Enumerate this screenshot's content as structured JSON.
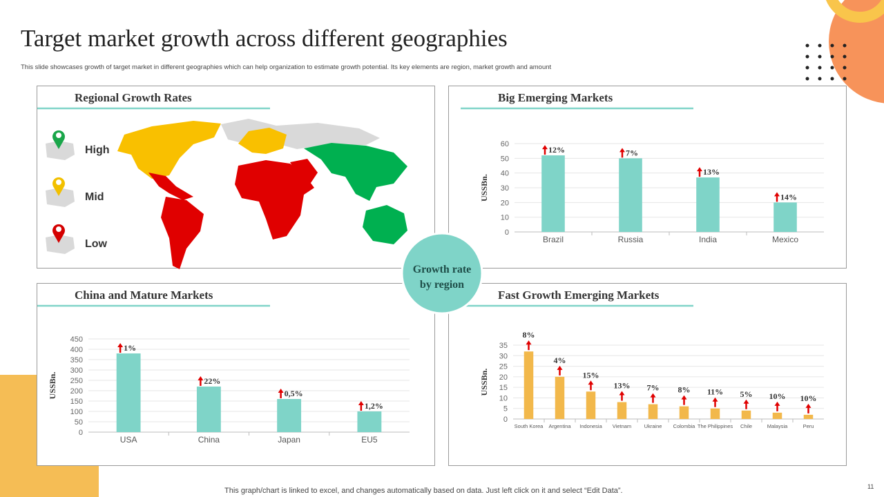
{
  "slide": {
    "title": "Target market growth across different geographies",
    "subtitle": "This slide showcases growth of target market in different geographies which can help organization to estimate growth potential. Its key elements are region, market growth and amount",
    "map_title": "Regional Growth Rates",
    "legend": [
      "High",
      "Mid",
      "Low"
    ],
    "center": [
      "Growth rate",
      "by region"
    ],
    "footer": "This graph/chart is linked to excel,  and changes automatically based on data. Just left click on it and select “Edit Data”.",
    "page": "11"
  },
  "chart_data": [
    {
      "type": "bar",
      "title": "Big Emerging Markets",
      "y_label": "USSBn.",
      "color": "#7fd4c8",
      "categories": [
        "Brazil",
        "Russia",
        "India",
        "Mexico"
      ],
      "values": [
        52,
        50,
        37,
        20
      ],
      "annotations": [
        "12%",
        "7%",
        "13%",
        "14%"
      ],
      "ylim": [
        0,
        60
      ],
      "yticks": [
        0,
        10,
        20,
        30,
        40,
        50,
        60
      ],
      "grid": true
    },
    {
      "type": "bar",
      "title": "China and Mature Markets",
      "y_label": "USSBn.",
      "color": "#7fd4c8",
      "categories": [
        "USA",
        "China",
        "Japan",
        "EU5"
      ],
      "values": [
        380,
        220,
        160,
        100
      ],
      "annotations": [
        "1%",
        "22%",
        "0,5%",
        "1,2%"
      ],
      "ylim": [
        0,
        450
      ],
      "yticks": [
        0,
        50,
        100,
        150,
        200,
        250,
        300,
        350,
        400,
        450
      ],
      "grid": true
    },
    {
      "type": "bar",
      "title": "Fast Growth Emerging Markets",
      "y_label": "USSBn.",
      "color": "#f2b84b",
      "categories": [
        "South Korea",
        "Argentina",
        "Indonesia",
        "Vietnam",
        "Ukraine",
        "Colombia",
        "The Philippines",
        "Chile",
        "Malaysia",
        "Peru"
      ],
      "values": [
        32,
        20,
        13,
        8,
        7,
        6,
        5,
        4,
        3,
        2
      ],
      "annotations": [
        "8%",
        "4%",
        "15%",
        "13%",
        "7%",
        "8%",
        "11%",
        "5%",
        "10%",
        "10%"
      ],
      "ylim": [
        0,
        35
      ],
      "yticks": [
        0,
        5,
        10,
        15,
        20,
        25,
        30,
        35
      ],
      "grid": true
    }
  ]
}
